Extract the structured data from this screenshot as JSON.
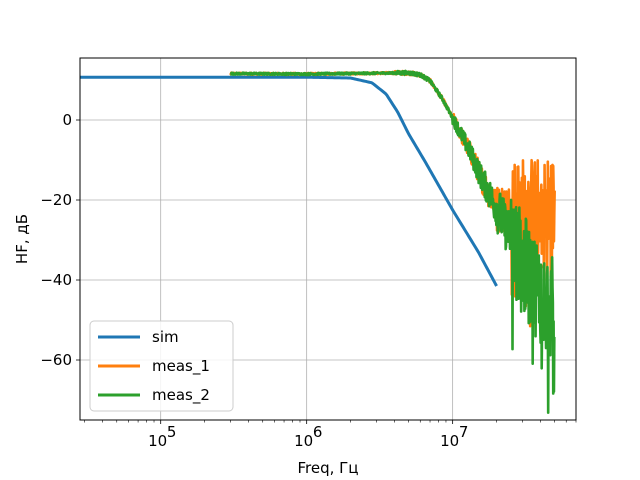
{
  "chart_data": {
    "type": "line",
    "title": "",
    "xlabel": "Freq, Гц",
    "ylabel": "HF, дБ",
    "xscale": "log",
    "xlim": [
      28000,
      70000000
    ],
    "ylim": [
      -75,
      15.5
    ],
    "xticks": [
      {
        "value": 100000,
        "base": "10",
        "exp": "5"
      },
      {
        "value": 1000000,
        "base": "10",
        "exp": "6"
      },
      {
        "value": 10000000,
        "base": "10",
        "exp": "7"
      }
    ],
    "yticks": [
      {
        "value": 0,
        "label": "0"
      },
      {
        "value": -20,
        "label": "−20"
      },
      {
        "value": -40,
        "label": "−40"
      },
      {
        "value": -60,
        "label": "−60"
      }
    ],
    "grid": true,
    "legend_position": "lower-left",
    "series": [
      {
        "name": "sim",
        "color": "#1f77b4",
        "x": [
          28000,
          100000,
          1000000,
          2000000,
          2800000,
          3500000,
          4200000,
          5000000,
          6500000,
          10000000,
          15000000,
          20000000
        ],
        "y": [
          10.7,
          10.7,
          10.7,
          10.5,
          9.3,
          6.5,
          2.0,
          -3.5,
          -10.5,
          -22.5,
          -33.0,
          -41.5
        ]
      },
      {
        "name": "meas_1",
        "color": "#ff7f0e",
        "x": [
          300000,
          1000000,
          3000000,
          5000000,
          6000000,
          7000000,
          8500000,
          10000000,
          13000000,
          16000000,
          20000000
        ],
        "y": [
          11.6,
          11.5,
          11.7,
          11.8,
          11.3,
          9.8,
          5.3,
          0.5,
          -7.5,
          -15.0,
          -22.0
        ],
        "noise_start": 300000,
        "noise_end": 50000000
      },
      {
        "name": "meas_2",
        "color": "#2ca02c",
        "x": [
          300000,
          1000000,
          3000000,
          5000000,
          6000000,
          7000000,
          8500000,
          10000000,
          13000000,
          16000000,
          20000000,
          25000000,
          30000000,
          40000000,
          50000000
        ],
        "y": [
          11.6,
          11.5,
          11.7,
          11.8,
          11.3,
          9.8,
          5.3,
          0.5,
          -7.5,
          -15.0,
          -22.0,
          -29.0,
          -36.0,
          -43.0,
          -48.0
        ]
      }
    ]
  }
}
